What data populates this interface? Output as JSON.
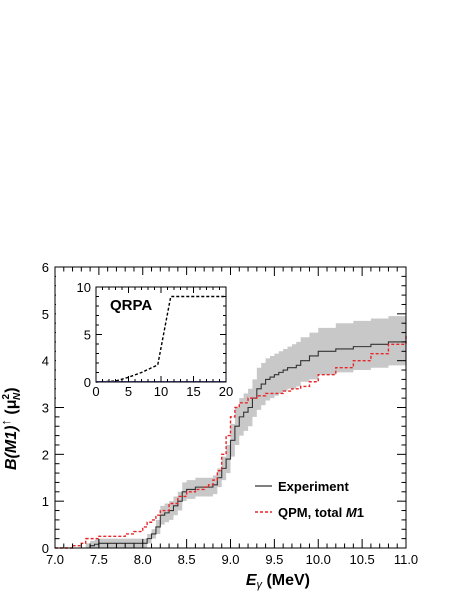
{
  "chart_data": [
    {
      "type": "line",
      "title": "",
      "xlabel_main": "E",
      "xlabel_sub": "γ",
      "xlabel_unit": " (MeV)",
      "ylabel_main": "B(M1)",
      "ylabel_arrow": "↑",
      "ylabel_unit": " (μ",
      "ylabel_unit_sup": "2",
      "ylabel_unit_sub": "N",
      "ylabel_unit_close": ")",
      "xlim": [
        7.0,
        11.0
      ],
      "ylim": [
        0,
        6
      ],
      "xticks": [
        "7.0",
        "7.5",
        "8.0",
        "8.5",
        "9.0",
        "9.5",
        "10.0",
        "10.5",
        "11.0"
      ],
      "yticks": [
        "0",
        "1",
        "2",
        "3",
        "4",
        "5",
        "6"
      ],
      "legend_position": "bottom-right",
      "series": [
        {
          "name": "Experiment",
          "color": "#333333",
          "style": "solid-step",
          "x": [
            7.35,
            7.4,
            7.45,
            7.5,
            7.6,
            7.7,
            7.8,
            7.9,
            8.0,
            8.05,
            8.1,
            8.15,
            8.2,
            8.25,
            8.3,
            8.35,
            8.4,
            8.45,
            8.5,
            8.6,
            8.7,
            8.8,
            8.85,
            8.9,
            8.95,
            9.0,
            9.05,
            9.1,
            9.15,
            9.2,
            9.25,
            9.3,
            9.35,
            9.4,
            9.45,
            9.5,
            9.55,
            9.6,
            9.65,
            9.7,
            9.75,
            9.8,
            9.9,
            10.0,
            10.2,
            10.4,
            10.6,
            10.8,
            11.0
          ],
          "y": [
            0.0,
            0.05,
            0.08,
            0.1,
            0.1,
            0.1,
            0.1,
            0.1,
            0.1,
            0.2,
            0.3,
            0.45,
            0.7,
            0.75,
            0.8,
            0.9,
            1.0,
            1.2,
            1.25,
            1.3,
            1.3,
            1.35,
            1.5,
            1.7,
            1.9,
            2.3,
            2.6,
            2.8,
            2.9,
            3.0,
            3.2,
            3.4,
            3.5,
            3.6,
            3.65,
            3.7,
            3.75,
            3.8,
            3.85,
            3.85,
            3.9,
            4.0,
            4.1,
            4.2,
            4.25,
            4.3,
            4.35,
            4.4,
            4.45
          ],
          "band_low": [
            0.0,
            0.0,
            0.0,
            0.0,
            0.0,
            0.0,
            0.0,
            0.0,
            0.0,
            0.1,
            0.2,
            0.3,
            0.5,
            0.55,
            0.6,
            0.7,
            0.8,
            1.0,
            1.05,
            1.1,
            1.1,
            1.15,
            1.3,
            1.45,
            1.6,
            1.95,
            2.2,
            2.4,
            2.5,
            2.6,
            2.8,
            2.95,
            3.05,
            3.15,
            3.2,
            3.25,
            3.3,
            3.35,
            3.4,
            3.4,
            3.45,
            3.55,
            3.6,
            3.7,
            3.75,
            3.8,
            3.85,
            3.9,
            3.95
          ],
          "band_high": [
            0.1,
            0.15,
            0.18,
            0.2,
            0.2,
            0.2,
            0.2,
            0.2,
            0.2,
            0.3,
            0.4,
            0.6,
            0.9,
            0.95,
            1.0,
            1.1,
            1.2,
            1.4,
            1.45,
            1.5,
            1.5,
            1.55,
            1.7,
            1.95,
            2.2,
            2.65,
            3.0,
            3.2,
            3.3,
            3.4,
            3.6,
            3.85,
            3.95,
            4.05,
            4.1,
            4.15,
            4.2,
            4.25,
            4.3,
            4.35,
            4.4,
            4.5,
            4.6,
            4.7,
            4.8,
            4.85,
            4.9,
            4.95,
            5.0
          ]
        },
        {
          "name": "QPM, total M1",
          "name_plain": "QPM, total ",
          "name_italic": "M",
          "name_tail": "1",
          "color": "#e8262a",
          "style": "dashed-step",
          "x": [
            7.0,
            7.2,
            7.3,
            7.35,
            7.5,
            7.8,
            7.9,
            8.0,
            8.05,
            8.1,
            8.15,
            8.2,
            8.3,
            8.4,
            8.5,
            8.6,
            8.7,
            8.75,
            8.8,
            8.85,
            8.9,
            8.95,
            9.0,
            9.05,
            9.1,
            9.2,
            9.3,
            9.4,
            9.5,
            9.6,
            9.7,
            9.8,
            9.9,
            10.0,
            10.2,
            10.4,
            10.6,
            10.8,
            11.0
          ],
          "y": [
            0.0,
            0.05,
            0.1,
            0.2,
            0.25,
            0.3,
            0.35,
            0.45,
            0.55,
            0.6,
            0.7,
            0.8,
            0.95,
            1.1,
            1.2,
            1.25,
            1.3,
            1.35,
            1.45,
            1.65,
            2.0,
            2.4,
            2.8,
            3.0,
            3.1,
            3.2,
            3.25,
            3.3,
            3.3,
            3.35,
            3.4,
            3.45,
            3.55,
            3.7,
            3.85,
            4.0,
            4.15,
            4.35,
            4.55
          ]
        }
      ]
    },
    {
      "type": "line",
      "title": "QRPA",
      "xlim": [
        0,
        20
      ],
      "ylim": [
        0,
        10
      ],
      "xticks": [
        "0",
        "5",
        "10",
        "15",
        "20"
      ],
      "yticks": [
        "0",
        "5",
        "10"
      ],
      "series": [
        {
          "color": "#000000",
          "style": "dashed",
          "x": [
            0,
            3,
            5,
            7,
            9.5,
            11.5,
            12,
            20
          ],
          "y": [
            0,
            0.1,
            0.5,
            1.0,
            1.8,
            9.0,
            9.0,
            9.0
          ]
        },
        {
          "color": "#5a5ab4",
          "style": "solid",
          "x": [
            0,
            20
          ],
          "y": [
            0.05,
            0.05
          ]
        }
      ]
    }
  ]
}
